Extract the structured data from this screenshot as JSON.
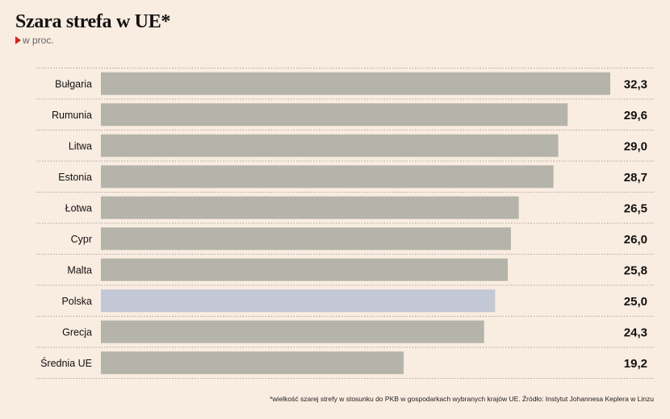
{
  "title": "Szara strefa w UE*",
  "subtitle": "w proc.",
  "footnote": "*wielkość szarej strefy w stosunku do PKB w gospodarkach wybranych krajów UE. Źródło: Instytut Johannesa Keplera w Linzu",
  "colors": {
    "bar": "#b5b4aa",
    "highlight": "#c3c8d6",
    "accent": "#d1261b",
    "grid": "#a9a39a",
    "background": "#f9ece0"
  },
  "chart_data": {
    "type": "bar",
    "orientation": "horizontal",
    "title": "Szara strefa w UE*",
    "unit": "w proc.",
    "categories": [
      "Bułgaria",
      "Rumunia",
      "Litwa",
      "Estonia",
      "Łotwa",
      "Cypr",
      "Malta",
      "Polska",
      "Grecja",
      "Średnia UE"
    ],
    "values": [
      32.3,
      29.6,
      29.0,
      28.7,
      26.5,
      26.0,
      25.8,
      25.0,
      24.3,
      19.2
    ],
    "value_labels": [
      "32,3",
      "29,6",
      "29,0",
      "28,7",
      "26,5",
      "26,0",
      "25,8",
      "25,0",
      "24,3",
      "19,2"
    ],
    "highlight": "Polska",
    "xlim": [
      0,
      32.3
    ]
  }
}
